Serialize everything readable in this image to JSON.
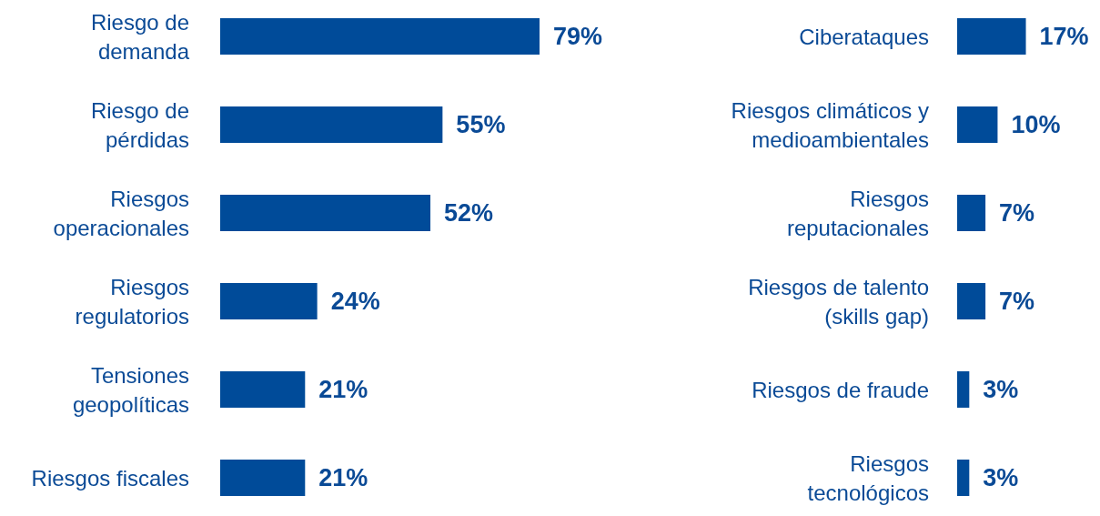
{
  "chart_data": [
    {
      "type": "bar",
      "orientation": "horizontal",
      "categories": [
        "Riesgo de\ndemanda",
        "Riesgo de\npérdidas",
        "Riesgos\noperacionales",
        "Riesgos\nregulatorios",
        "Tensiones\ngeopolíticas",
        "Riesgos fiscales"
      ],
      "values": [
        79,
        55,
        52,
        24,
        21,
        21
      ],
      "value_labels": [
        "79%",
        "55%",
        "52%",
        "24%",
        "21%",
        "21%"
      ],
      "color": "#004b99"
    },
    {
      "type": "bar",
      "orientation": "horizontal",
      "categories": [
        "Ciberataques",
        "Riesgos climáticos y\nmedioambientales",
        "Riesgos\nreputacionales",
        "Riesgos de talento\n(skills gap)",
        "Riesgos de fraude",
        "Riesgos\ntecnológicos"
      ],
      "values": [
        17,
        10,
        7,
        7,
        3,
        3
      ],
      "value_labels": [
        "17%",
        "10%",
        "7%",
        "7%",
        "3%",
        "3%"
      ],
      "color": "#004b99"
    }
  ]
}
